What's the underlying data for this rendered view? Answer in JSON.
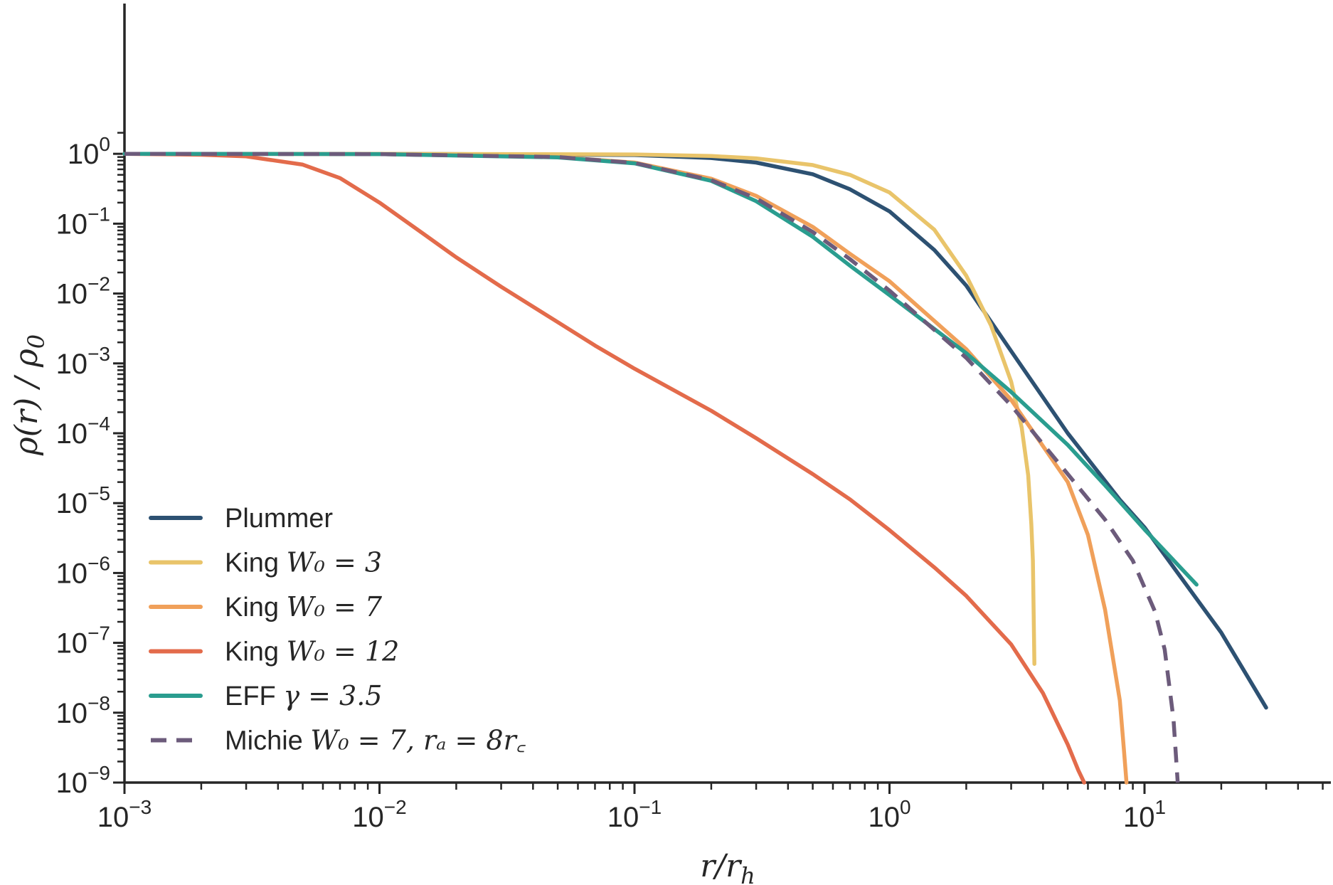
{
  "chart_data": {
    "type": "line",
    "xscale": "log",
    "yscale": "log",
    "xlim": [
      0.001,
      70
    ],
    "ylim": [
      1e-09,
      2
    ],
    "xlabel": "r/r_h",
    "ylabel": "ρ(r) / ρ_0",
    "grid": false,
    "legend_position": "lower-left",
    "x_ticks": [
      {
        "value": 0.001,
        "base": "10",
        "exp": "−3"
      },
      {
        "value": 0.01,
        "base": "10",
        "exp": "−2"
      },
      {
        "value": 0.1,
        "base": "10",
        "exp": "−1"
      },
      {
        "value": 1,
        "base": "10",
        "exp": "0"
      },
      {
        "value": 10,
        "base": "10",
        "exp": "1"
      }
    ],
    "y_ticks": [
      {
        "value": 1,
        "base": "10",
        "exp": "0"
      },
      {
        "value": 0.1,
        "base": "10",
        "exp": "−1"
      },
      {
        "value": 0.01,
        "base": "10",
        "exp": "−2"
      },
      {
        "value": 0.001,
        "base": "10",
        "exp": "−3"
      },
      {
        "value": 0.0001,
        "base": "10",
        "exp": "−4"
      },
      {
        "value": 1e-05,
        "base": "10",
        "exp": "−5"
      },
      {
        "value": 1e-06,
        "base": "10",
        "exp": "−6"
      },
      {
        "value": 1e-07,
        "base": "10",
        "exp": "−7"
      },
      {
        "value": 1e-08,
        "base": "10",
        "exp": "−8"
      },
      {
        "value": 1e-09,
        "base": "10",
        "exp": "−9"
      }
    ],
    "series": [
      {
        "name": "Plummer",
        "legend": {
          "plain": "Plummer",
          "math": ""
        },
        "color": "#2d5172",
        "dash": false,
        "x": [
          0.001,
          0.01,
          0.1,
          0.2,
          0.3,
          0.5,
          0.7,
          1,
          1.5,
          2,
          3,
          5,
          8,
          10,
          15,
          20,
          30
        ],
        "y": [
          1.0,
          1.0,
          0.96,
          0.87,
          0.75,
          0.51,
          0.31,
          0.15,
          0.042,
          0.013,
          0.0015,
          0.0001,
          1.12e-05,
          4.5e-06,
          5.9e-07,
          1.4e-07,
          1.18e-08
        ]
      },
      {
        "name": "King W0 = 3",
        "legend": {
          "plain": "King ",
          "math": "W₀ = 3"
        },
        "color": "#e9c46a",
        "dash": false,
        "x": [
          0.001,
          0.01,
          0.1,
          0.2,
          0.3,
          0.5,
          0.7,
          1,
          1.5,
          2,
          2.5,
          3,
          3.3,
          3.5,
          3.6,
          3.65,
          3.7
        ],
        "y": [
          1.0,
          1.0,
          0.98,
          0.93,
          0.86,
          0.69,
          0.5,
          0.28,
          0.082,
          0.018,
          0.0035,
          0.00055,
          0.00012,
          2.5e-05,
          5e-06,
          1.5e-06,
          5e-08
        ]
      },
      {
        "name": "King W0 = 7",
        "legend": {
          "plain": "King ",
          "math": "W₀ = 7"
        },
        "color": "#f0a05a",
        "dash": false,
        "x": [
          0.001,
          0.01,
          0.05,
          0.1,
          0.2,
          0.3,
          0.5,
          0.7,
          1,
          2,
          3,
          5,
          6,
          7,
          8,
          8.3,
          8.5
        ],
        "y": [
          1.0,
          0.99,
          0.9,
          0.75,
          0.44,
          0.25,
          0.09,
          0.037,
          0.015,
          0.0016,
          0.0003,
          2e-05,
          3.5e-06,
          3e-07,
          1.5e-08,
          3e-09,
          1e-09
        ]
      },
      {
        "name": "King W0 = 12",
        "legend": {
          "plain": "King ",
          "math": "W₀ = 12"
        },
        "color": "#e36b4b",
        "dash": false,
        "x": [
          0.001,
          0.002,
          0.003,
          0.005,
          0.007,
          0.01,
          0.015,
          0.02,
          0.03,
          0.05,
          0.07,
          0.1,
          0.2,
          0.3,
          0.5,
          0.7,
          1,
          1.5,
          2,
          3,
          4,
          5,
          5.5,
          5.8
        ],
        "y": [
          1.0,
          0.97,
          0.92,
          0.7,
          0.45,
          0.2,
          0.07,
          0.033,
          0.0125,
          0.0039,
          0.0018,
          0.00084,
          0.00021,
          8.5e-05,
          2.6e-05,
          1.13e-05,
          4.1e-06,
          1.2e-06,
          4.7e-07,
          9.5e-08,
          1.9e-08,
          3.5e-09,
          1.5e-09,
          1e-09
        ]
      },
      {
        "name": "EFF γ = 3.5",
        "legend": {
          "plain": "EFF ",
          "math": "γ = 3.5"
        },
        "color": "#2a9d8f",
        "dash": false,
        "x": [
          0.001,
          0.01,
          0.05,
          0.1,
          0.2,
          0.3,
          0.5,
          0.7,
          1,
          1.5,
          2,
          3,
          5,
          7,
          10,
          16
        ],
        "y": [
          1.0,
          0.99,
          0.89,
          0.73,
          0.41,
          0.21,
          0.065,
          0.025,
          0.0095,
          0.0031,
          0.0014,
          0.00039,
          6.8e-05,
          1.8e-05,
          4.2e-06,
          6.8e-07
        ]
      },
      {
        "name": "Michie W0 = 7, ra = 8rc",
        "legend": {
          "plain": "Michie ",
          "math": "W₀ = 7,  rₐ = 8r꜀"
        },
        "color": "#6c5b7b",
        "dash": true,
        "x": [
          0.001,
          0.01,
          0.05,
          0.1,
          0.2,
          0.3,
          0.5,
          0.7,
          1,
          2,
          3,
          5,
          7,
          9,
          11,
          12,
          13,
          13.5
        ],
        "y": [
          1.0,
          0.99,
          0.9,
          0.74,
          0.42,
          0.23,
          0.076,
          0.031,
          0.011,
          0.0012,
          0.00025,
          2.6e-05,
          5.8e-06,
          1.5e-06,
          2.8e-07,
          8e-08,
          8e-09,
          1e-09
        ]
      }
    ]
  }
}
